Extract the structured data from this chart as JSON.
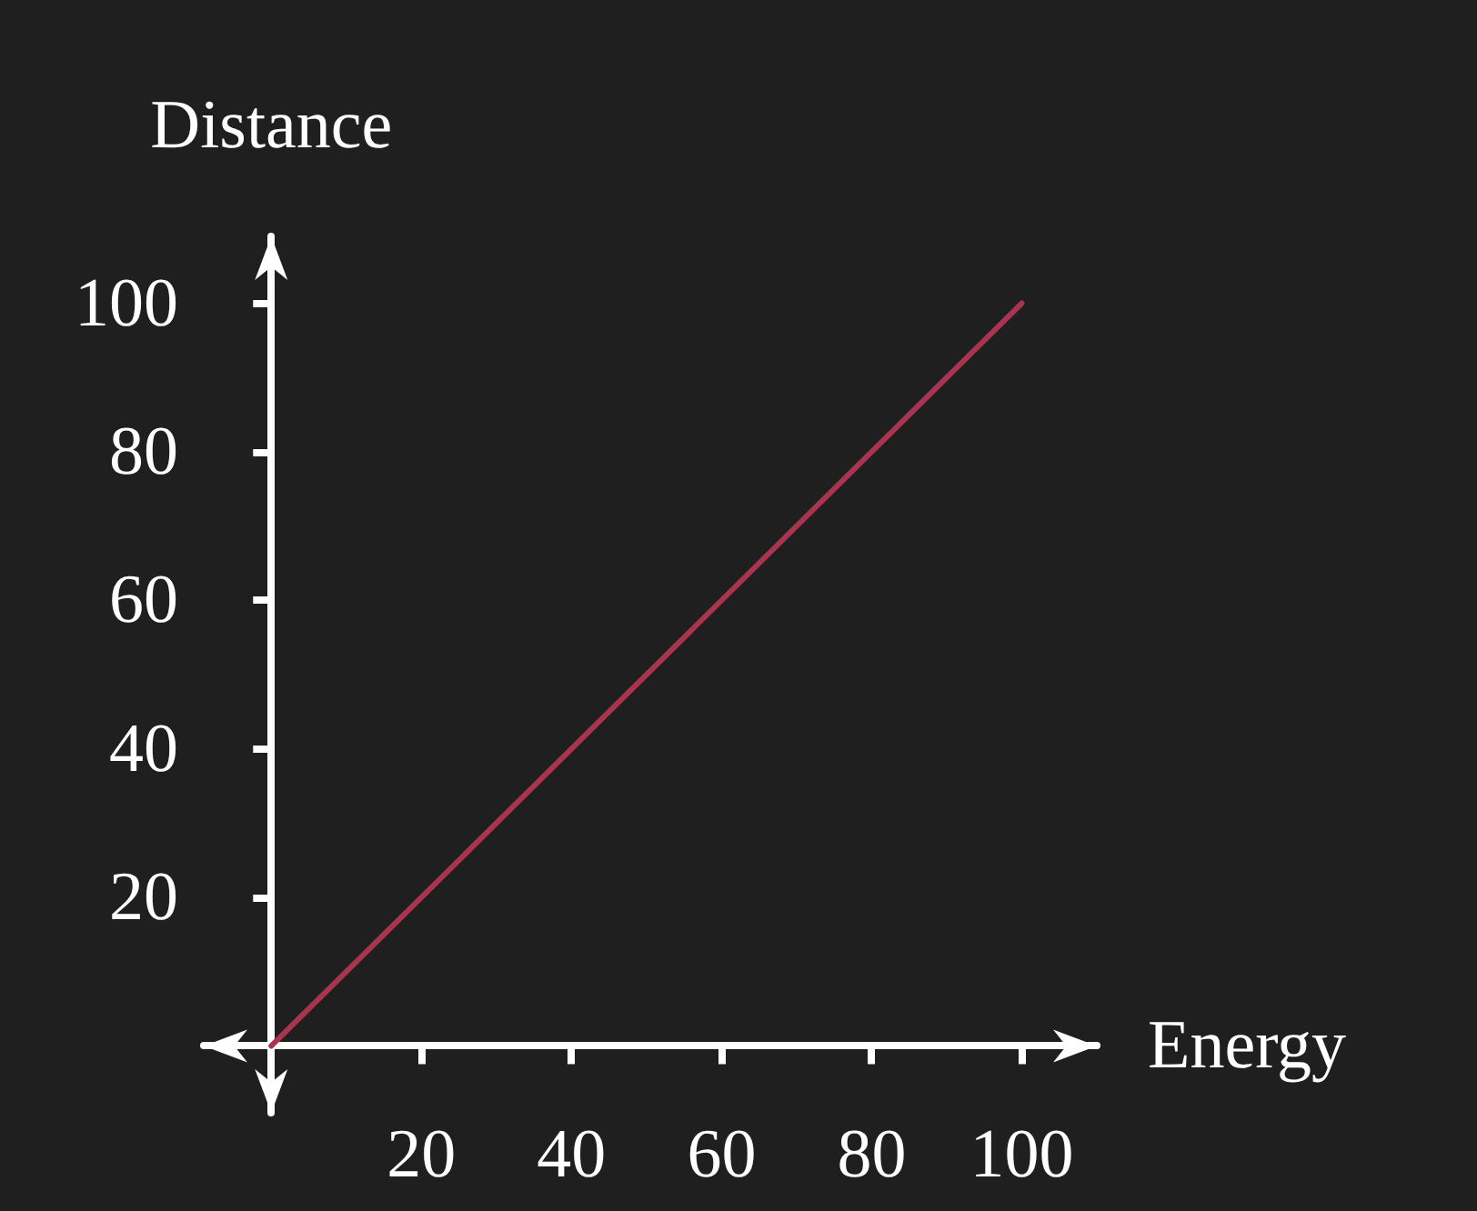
{
  "chart_data": {
    "type": "line",
    "xlabel": "Energy",
    "ylabel": "Distance",
    "x": [
      0,
      100
    ],
    "series": [
      {
        "color": "#a8344f",
        "values": [
          0,
          100
        ]
      }
    ],
    "xlim": [
      -9,
      110
    ],
    "ylim": [
      -9,
      109
    ],
    "xticks": [
      20,
      40,
      60,
      80,
      100
    ],
    "yticks": [
      20,
      40,
      60,
      80,
      100
    ],
    "grid": false,
    "marker": "none",
    "line_style": "solid"
  }
}
